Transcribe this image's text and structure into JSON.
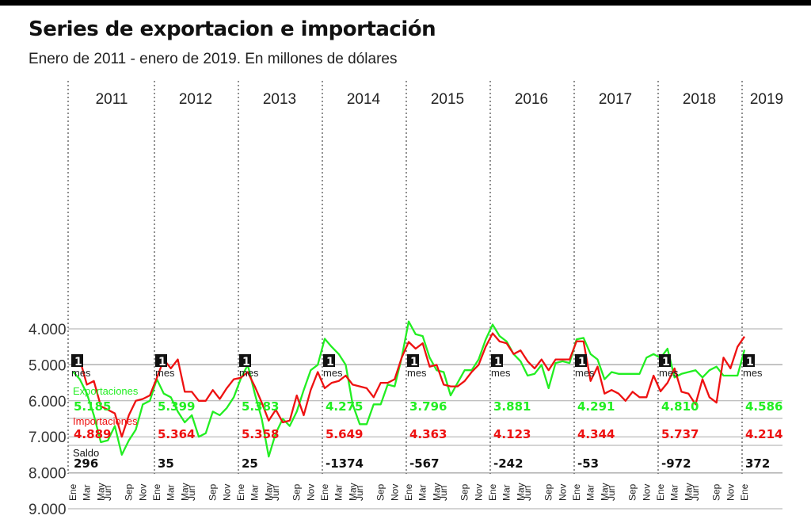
{
  "page": {
    "title": "Series de exportacion e importación",
    "subtitle": "Enero de 2011 - enero de 2019. En millones de dólares"
  },
  "colors": {
    "exports": "#22ee22",
    "imports": "#ee1111",
    "saldo": "#111111",
    "grid": "#aaaaaa",
    "divider": "#555555"
  },
  "chart_data": {
    "type": "line",
    "title": "Series de exportacion e importación",
    "subtitle": "Enero de 2011 - enero de 2019. En millones de dólares",
    "ylim": [
      3500,
      9300
    ],
    "yticks": [
      4000,
      5000,
      6000,
      7000,
      8000,
      9000
    ],
    "ytick_labels": [
      "4.000",
      "5.000",
      "6.000",
      "7.000",
      "8.000",
      "9.000"
    ],
    "grid": true,
    "years": [
      "2011",
      "2012",
      "2013",
      "2014",
      "2015",
      "2016",
      "2017",
      "2018",
      "2019"
    ],
    "month_labels": [
      "Ene",
      "Mar",
      "May",
      "Jun",
      "Sep",
      "Nov"
    ],
    "series": [
      {
        "name": "Exportaciones",
        "values": [
          5185,
          5400,
          5800,
          6400,
          7150,
          7100,
          6700,
          7500,
          7100,
          6800,
          6100,
          6000,
          5399,
          5800,
          5900,
          6300,
          6600,
          6400,
          7000,
          6900,
          6300,
          6400,
          6200,
          5900,
          5383,
          5000,
          5800,
          6500,
          7550,
          6900,
          6500,
          6700,
          6300,
          5700,
          5150,
          5000,
          4275,
          4500,
          4700,
          5000,
          6100,
          6650,
          6650,
          6100,
          6100,
          5550,
          5600,
          4800,
          3796,
          4150,
          4200,
          4800,
          5150,
          5200,
          5850,
          5500,
          5150,
          5150,
          4850,
          4300,
          3881,
          4200,
          4350,
          4700,
          4900,
          5300,
          5250,
          5000,
          5650,
          4950,
          4900,
          4950,
          4291,
          4250,
          4700,
          4850,
          5400,
          5200,
          5250,
          5250,
          5250,
          5250,
          4800,
          4700,
          4810,
          4550,
          5350,
          5250,
          5200,
          5150,
          5350,
          5150,
          5050,
          5300,
          5300,
          5300,
          4586
        ]
      },
      {
        "name": "Importaciones",
        "values": [
          4889,
          4850,
          5550,
          5450,
          6150,
          6250,
          6350,
          7000,
          6400,
          6000,
          5950,
          5850,
          5364,
          4850,
          5100,
          4850,
          5750,
          5750,
          6000,
          6000,
          5700,
          5950,
          5650,
          5400,
          5358,
          5200,
          5600,
          6050,
          6550,
          6250,
          6600,
          6550,
          5850,
          6400,
          5700,
          5200,
          5649,
          5500,
          5450,
          5300,
          5550,
          5600,
          5650,
          5900,
          5500,
          5500,
          5400,
          4800,
          4363,
          4550,
          4400,
          5050,
          5000,
          5550,
          5600,
          5600,
          5450,
          5200,
          5000,
          4500,
          4123,
          4350,
          4400,
          4700,
          4600,
          4900,
          5100,
          4850,
          5150,
          4850,
          4850,
          4850,
          4344,
          4350,
          5450,
          5050,
          5800,
          5700,
          5800,
          6000,
          5750,
          5900,
          5900,
          5300,
          5737,
          5500,
          5100,
          5750,
          5800,
          6100,
          5400,
          5900,
          6050,
          4800,
          5100,
          4500,
          4214
        ]
      }
    ]
  },
  "one_month": {
    "badge": "1",
    "label": "mes"
  },
  "table": {
    "exports_label": "Exportaciones",
    "imports_label": "Importaciones",
    "saldo_label": "Saldo",
    "exports": [
      "5.185",
      "5.399",
      "5.383",
      "4.275",
      "3.796",
      "3.881",
      "4.291",
      "4.810",
      "4.586"
    ],
    "imports": [
      "4.889",
      "5.364",
      "5.358",
      "5.649",
      "4.363",
      "4.123",
      "4.344",
      "5.737",
      "4.214"
    ],
    "saldo": [
      "296",
      "35",
      "25",
      "-1374",
      "-567",
      "-242",
      "-53",
      "-972",
      "372"
    ]
  }
}
